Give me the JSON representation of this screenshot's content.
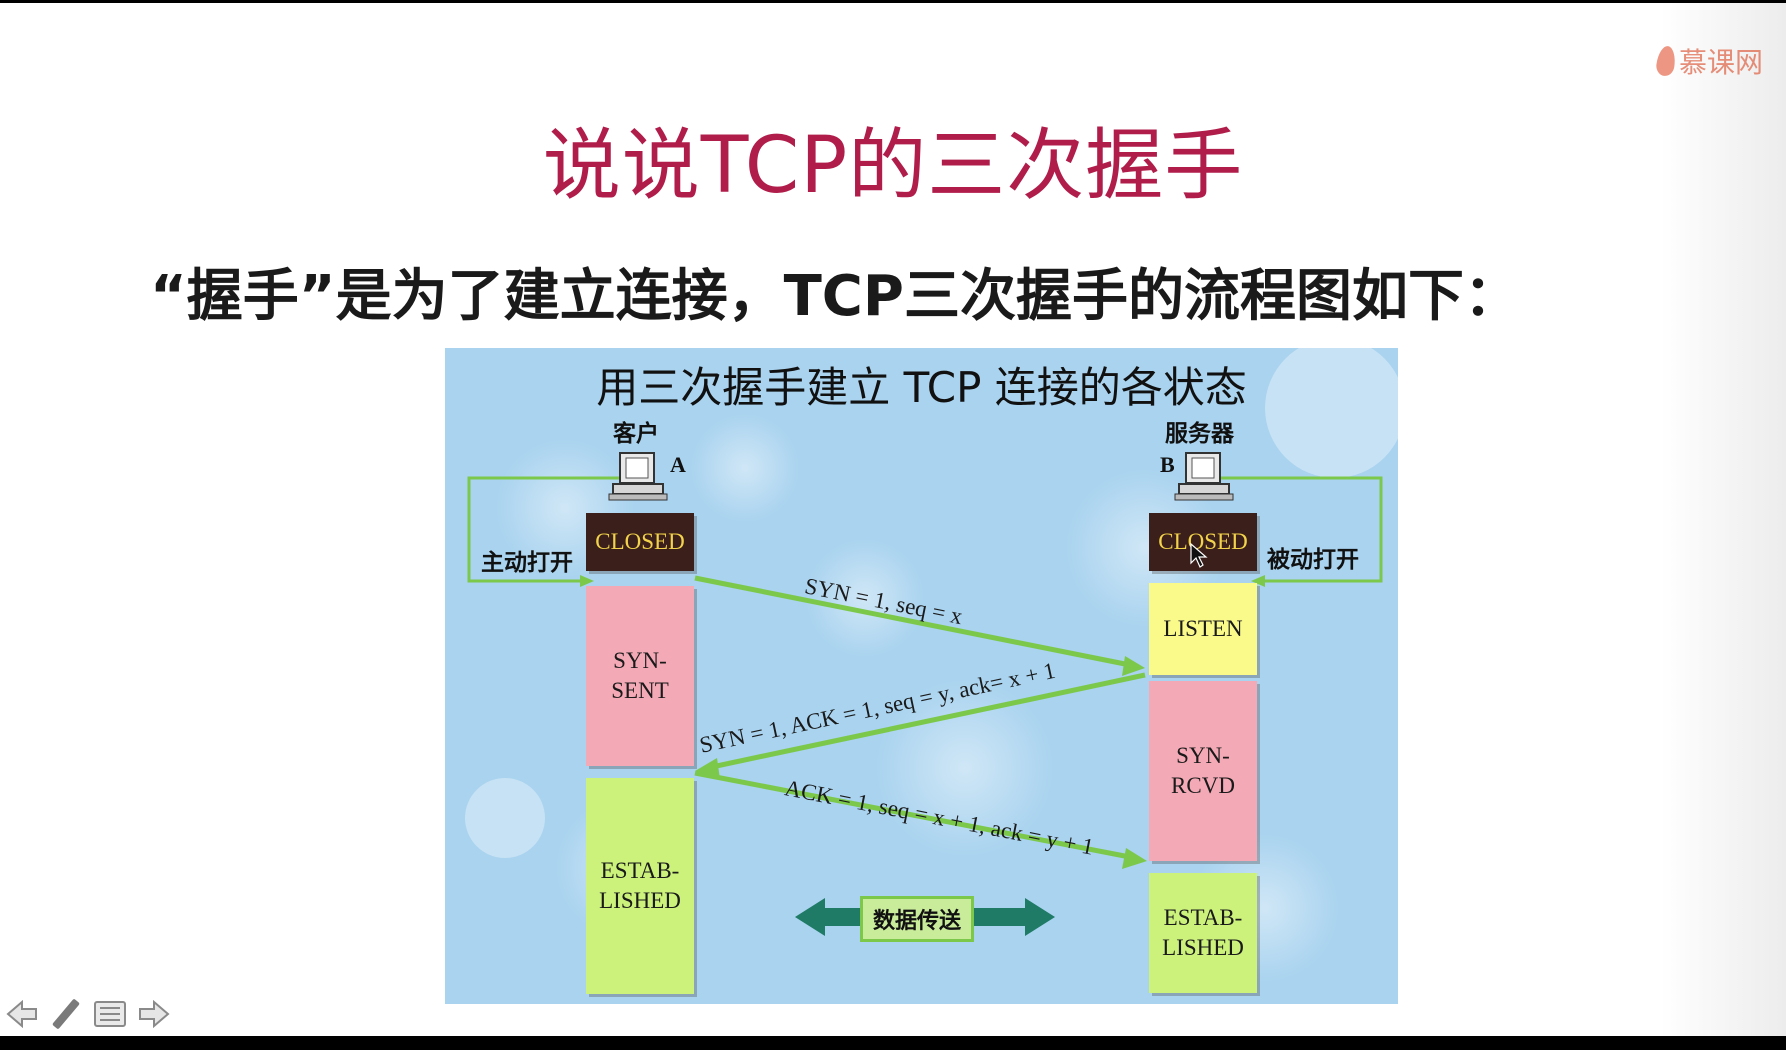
{
  "slide": {
    "logo_text": "慕课网",
    "title": "说说TCP的三次握手",
    "subtitle": "“握手”是为了建立连接，TCP三次握手的流程图如下："
  },
  "figure": {
    "title": "用三次握手建立 TCP 连接的各状态",
    "client_label": "客户",
    "server_label": "服务器",
    "client_letter": "A",
    "server_letter": "B",
    "active_open": "主动打开",
    "passive_open": "被动打开",
    "client_states": [
      "CLOSED",
      "SYN-\nSENT",
      "ESTAB-\nLISHED"
    ],
    "server_states": [
      "CLOSED",
      "LISTEN",
      "SYN-\nRCVD",
      "ESTAB-\nLISHED"
    ],
    "messages": [
      "SYN = 1, seq = x",
      "SYN = 1, ACK = 1, seq = y, ack= x + 1",
      "ACK = 1, seq = x + 1, ack = y + 1"
    ],
    "data_transfer": "数据传送",
    "colors": {
      "closed": "#3b1f1a",
      "closed_text": "#f2d34b",
      "pink": "#f3aab6",
      "green": "#ccf27c",
      "yellow": "#fafa8a",
      "arrow": "#7cc84b",
      "transfer_arrow": "#1f7a66"
    }
  },
  "toolbar": {
    "icons": [
      "arrow-left-icon",
      "pen-icon",
      "menu-icon",
      "arrow-right-icon"
    ]
  }
}
